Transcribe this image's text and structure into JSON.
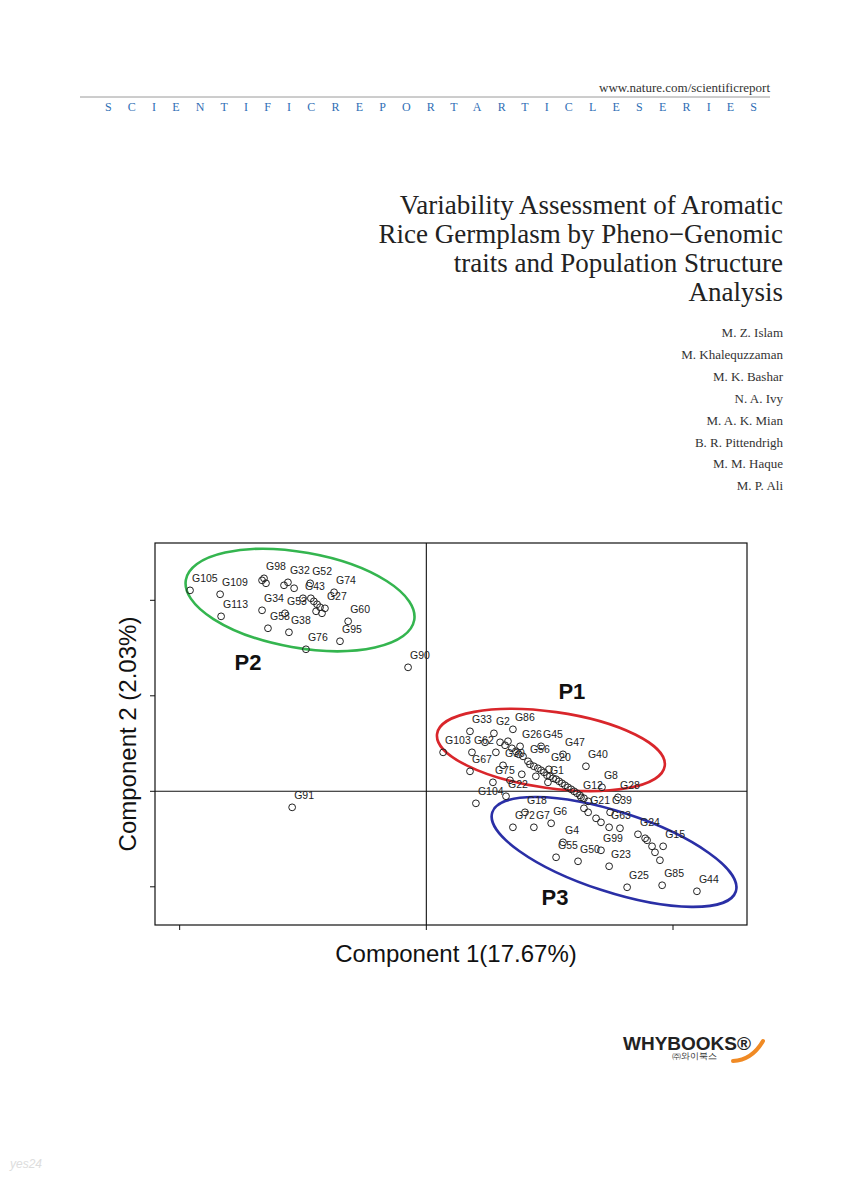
{
  "header": {
    "url": "www.nature.com/scientificreport",
    "series": "SCIENTIFICREPORTARTICLESERIES"
  },
  "title": [
    "Variability Assessment of Aromatic",
    "Rice Germplasm by Pheno−Genomic",
    "traits and Population Structure",
    "Analysis"
  ],
  "authors": [
    "M. Z. Islam",
    "M. Khalequzzaman",
    "M. K. Bashar",
    "N. A. Ivy",
    "M. A. K. Mian",
    "B. R. Pittendrigh",
    "M. M. Haque",
    "M. P. Ali"
  ],
  "publisher": {
    "name": "WHYBOOKS®",
    "korean": "㈜와이북스"
  },
  "watermark": "yes24",
  "chart_data": {
    "type": "scatter",
    "xlabel": "Component 1(17.67%)",
    "ylabel": "Component 2 (2.03%)",
    "xlim": [
      -1.1,
      1.3
    ],
    "ylim": [
      -1.4,
      2.6
    ],
    "xticks": [
      -1,
      0,
      1
    ],
    "yticks": [
      -1,
      0,
      1,
      2
    ],
    "tick_labels": false,
    "grid": false,
    "marker": "circle",
    "color": "#222222",
    "reference_lines": [
      {
        "axis": "x",
        "value": 0
      },
      {
        "axis": "y",
        "value": 0
      }
    ],
    "groups": [
      {
        "label": "P1",
        "color": "#d9262b",
        "cx": 0.505,
        "cy": 0.433,
        "rx": 0.466,
        "ry": 0.4
      },
      {
        "label": "P2",
        "color": "#34b54f",
        "cx": -0.512,
        "cy": 2.003,
        "rx": 0.47,
        "ry": 0.5
      },
      {
        "label": "P3",
        "color": "#2a2fa6",
        "cx": 0.761,
        "cy": -0.635,
        "rx": 0.519,
        "ry": 0.42
      }
    ],
    "x": [
      -0.958,
      -0.836,
      -0.658,
      -0.561,
      -0.471,
      -0.374,
      -0.5,
      -0.832,
      -0.666,
      -0.573,
      -0.411,
      -0.317,
      -0.642,
      -0.557,
      -0.35,
      -0.488,
      -0.666,
      -0.65,
      -0.577,
      -0.468,
      -0.456,
      -0.443,
      -0.431,
      -0.447,
      -0.423,
      -0.536,
      -0.074,
      -0.544,
      0.177,
      0.274,
      0.351,
      0.068,
      0.185,
      0.38,
      0.465,
      0.554,
      0.412,
      0.647,
      0.177,
      0.497,
      0.27,
      0.493,
      0.712,
      0.627,
      0.777,
      0.201,
      0.323,
      0.311,
      0.4,
      0.745,
      0.656,
      0.299,
      0.319,
      0.331,
      0.347,
      0.363,
      0.375,
      0.392,
      0.42,
      0.436,
      0.452,
      0.465,
      0.477,
      0.489,
      0.501,
      0.514,
      0.526,
      0.538,
      0.55,
      0.562,
      0.574,
      0.587,
      0.599,
      0.611,
      0.623,
      0.639,
      0.656,
      0.444,
      0.387,
      0.339,
      0.238,
      0.282,
      0.351,
      0.436,
      0.506,
      0.741,
      0.858,
      0.96,
      0.554,
      0.708,
      0.526,
      0.615,
      0.741,
      0.814,
      0.956,
      1.097,
      0.688,
      0.708,
      0.785,
      0.895,
      0.915,
      0.927,
      0.947,
      0.887,
      0.639
    ],
    "values": [
      2.104,
      2.063,
      2.23,
      2.188,
      2.178,
      2.084,
      2.021,
      1.832,
      1.895,
      1.864,
      1.916,
      1.78,
      1.707,
      1.665,
      1.571,
      1.487,
      2.209,
      2.178,
      2.157,
      2.021,
      1.989,
      1.958,
      1.927,
      1.885,
      1.864,
      2.126,
      1.298,
      -0.168,
      0.628,
      0.607,
      0.649,
      0.408,
      0.408,
      0.471,
      0.471,
      0.387,
      0.314,
      0.262,
      0.209,
      0.23,
      0.094,
      0.094,
      0.042,
      -0.063,
      -0.063,
      -0.126,
      -0.052,
      0.272,
      -0.22,
      -0.22,
      -0.22,
      0.513,
      0.482,
      0.524,
      0.45,
      0.419,
      0.387,
      0.366,
      0.283,
      0.262,
      0.241,
      0.22,
      0.199,
      0.168,
      0.157,
      0.136,
      0.126,
      0.105,
      0.084,
      0.063,
      0.042,
      0.021,
      0,
      -0.021,
      -0.042,
      -0.073,
      -0.105,
      0.157,
      0.178,
      0.115,
      0.513,
      0.408,
      -0.377,
      -0.377,
      -0.335,
      -0.377,
      -0.45,
      -0.576,
      -0.534,
      -0.618,
      -0.691,
      -0.733,
      -0.785,
      -1.005,
      -0.984,
      -1.047,
      -0.283,
      -0.325,
      -0.387,
      -0.513,
      -0.576,
      -0.639,
      -0.722,
      -0.492,
      -0.178
    ],
    "labels": [
      "G105",
      "G109",
      "G98",
      "G32",
      "G52",
      "G74",
      "G43",
      "G113",
      "G34",
      "G53",
      "G27",
      "G60",
      "G58",
      "G38",
      "G95",
      "G76",
      null,
      null,
      null,
      null,
      null,
      null,
      null,
      null,
      null,
      null,
      "G90",
      "G91",
      "G33",
      "G2",
      "G86",
      "G103",
      "G62",
      "G26",
      "G45",
      "G47",
      "G56",
      "G40",
      "G67",
      "G20",
      "G75",
      "G1",
      "G8",
      "G12",
      "G28",
      "G104",
      "G22",
      "G30",
      "G18",
      "G39",
      "G21",
      null,
      null,
      null,
      null,
      null,
      null,
      null,
      null,
      null,
      null,
      null,
      null,
      null,
      null,
      null,
      null,
      null,
      null,
      null,
      null,
      null,
      null,
      null,
      null,
      null,
      null,
      null,
      null,
      null,
      null,
      null,
      "G72",
      "G7",
      "G6",
      "G63",
      "G24",
      "G15",
      "G4",
      "G99",
      "G55",
      "G50",
      "G23",
      "G25",
      "G85",
      "G44",
      null,
      null,
      null,
      null,
      null,
      null,
      null,
      null,
      null
    ]
  }
}
